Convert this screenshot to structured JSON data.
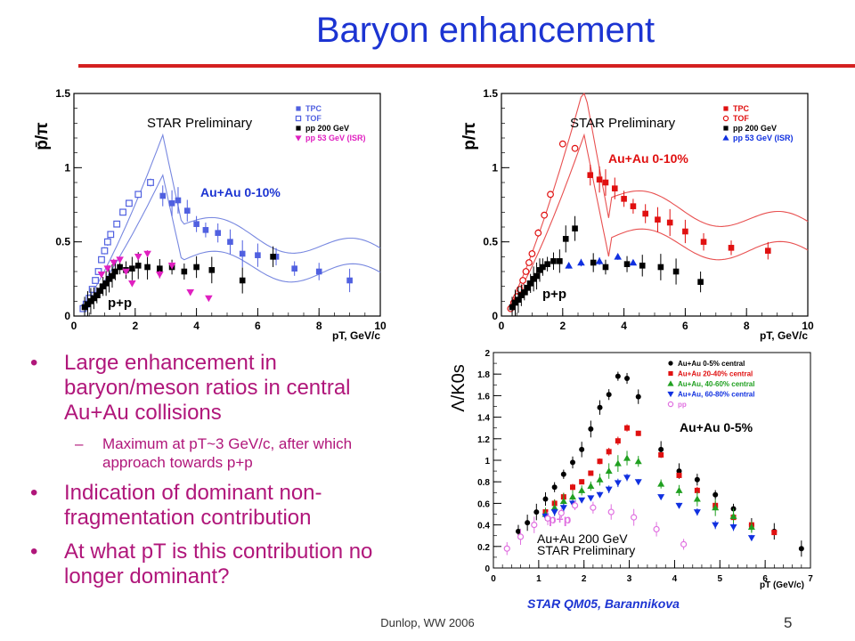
{
  "slide": {
    "title": "Baryon enhancement",
    "footer": "Dunlop, WW 2006",
    "page_number": "5",
    "credit": "STAR QM05, Barannikova",
    "colors": {
      "title": "#1c34d2",
      "rule": "#d42020",
      "text": "#b0167a"
    }
  },
  "bullets": [
    {
      "level": 1,
      "text": "Large enhancement in baryon/meson ratios in central Au+Au collisions"
    },
    {
      "level": 2,
      "text": "Maximum at pT~3 GeV/c, after which approach towards p+p"
    },
    {
      "level": 1,
      "text": "Indication of dominant non-fragmentation contribution"
    },
    {
      "level": 1,
      "text": "At what pT is this contribution no longer dominant?"
    }
  ],
  "chart_data": [
    {
      "type": "scatter",
      "ylabel": "p̄/π",
      "xlabel": "pT, GeV/c",
      "xlim": [
        0,
        10
      ],
      "ylim": [
        0,
        1.5
      ],
      "x_ticks": [
        "0",
        "2",
        "4",
        "6",
        "8",
        "10"
      ],
      "y_ticks": [
        "0",
        "0.5",
        "1",
        "1.5"
      ],
      "annotations": [
        "STAR Preliminary",
        "Au+Au 0-10%",
        "p+p"
      ],
      "legend": [
        "TPC",
        "TOF",
        "pp 200 GeV",
        "pp 53 GeV (ISR)"
      ],
      "series": [
        {
          "name": "TPC",
          "color": "#5060e0",
          "marker": "square",
          "x": [
            2.9,
            3.2,
            3.4,
            3.7,
            4.0,
            4.3,
            4.7,
            5.1,
            5.5,
            6.0,
            6.6,
            7.2,
            8.0,
            9.0
          ],
          "y": [
            0.81,
            0.76,
            0.78,
            0.71,
            0.62,
            0.58,
            0.56,
            0.5,
            0.42,
            0.41,
            0.4,
            0.32,
            0.3,
            0.24
          ]
        },
        {
          "name": "TOF",
          "color": "#5060e0",
          "marker": "open-square",
          "x": [
            0.3,
            0.4,
            0.5,
            0.6,
            0.7,
            0.8,
            0.9,
            1.0,
            1.1,
            1.2,
            1.4,
            1.6,
            1.8,
            2.1,
            2.5
          ],
          "y": [
            0.05,
            0.08,
            0.12,
            0.18,
            0.24,
            0.3,
            0.38,
            0.44,
            0.5,
            0.55,
            0.62,
            0.7,
            0.76,
            0.82,
            0.9
          ]
        },
        {
          "name": "pp 200 GeV",
          "color": "#000000",
          "marker": "square",
          "x": [
            0.35,
            0.45,
            0.55,
            0.65,
            0.75,
            0.85,
            0.95,
            1.05,
            1.15,
            1.25,
            1.35,
            1.5,
            1.7,
            1.9,
            2.1,
            2.4,
            2.8,
            3.2,
            3.6,
            4.0,
            4.5,
            5.5,
            6.5
          ],
          "y": [
            0.06,
            0.08,
            0.1,
            0.12,
            0.14,
            0.17,
            0.2,
            0.22,
            0.25,
            0.27,
            0.3,
            0.33,
            0.31,
            0.32,
            0.34,
            0.33,
            0.32,
            0.33,
            0.3,
            0.33,
            0.31,
            0.24,
            0.4
          ]
        },
        {
          "name": "pp 53 GeV (ISR)",
          "color": "#e020c0",
          "marker": "triangle-down",
          "x": [
            0.9,
            1.1,
            1.3,
            1.5,
            1.7,
            1.9,
            2.1,
            2.4,
            2.8,
            3.2,
            3.8,
            4.4
          ],
          "y": [
            0.28,
            0.32,
            0.36,
            0.38,
            0.3,
            0.22,
            0.4,
            0.42,
            0.28,
            0.34,
            0.16,
            0.12
          ]
        }
      ]
    },
    {
      "type": "scatter",
      "ylabel": "p/π",
      "xlabel": "pT, GeV/c",
      "xlim": [
        0,
        10
      ],
      "ylim": [
        0,
        1.5
      ],
      "x_ticks": [
        "0",
        "2",
        "4",
        "6",
        "8",
        "10"
      ],
      "y_ticks": [
        "0",
        "0.5",
        "1",
        "1.5"
      ],
      "annotations": [
        "STAR Preliminary",
        "Au+Au 0-10%",
        "p+p"
      ],
      "legend": [
        "TPC",
        "TOF",
        "pp 200 GeV",
        "pp 53 GeV (ISR)"
      ],
      "series": [
        {
          "name": "TPC",
          "color": "#e01010",
          "marker": "square",
          "x": [
            2.9,
            3.2,
            3.4,
            3.7,
            4.0,
            4.3,
            4.7,
            5.1,
            5.5,
            6.0,
            6.6,
            7.5,
            8.7
          ],
          "y": [
            0.95,
            0.92,
            0.9,
            0.86,
            0.79,
            0.74,
            0.69,
            0.65,
            0.63,
            0.57,
            0.5,
            0.46,
            0.44
          ]
        },
        {
          "name": "TOF",
          "color": "#e01010",
          "marker": "open-circle",
          "x": [
            0.3,
            0.4,
            0.5,
            0.6,
            0.7,
            0.8,
            0.9,
            1.0,
            1.2,
            1.4,
            1.6,
            2.0,
            2.4
          ],
          "y": [
            0.05,
            0.09,
            0.13,
            0.18,
            0.24,
            0.3,
            0.36,
            0.42,
            0.56,
            0.68,
            0.82,
            1.16,
            1.13
          ]
        },
        {
          "name": "pp 200 GeV",
          "color": "#000000",
          "marker": "square",
          "x": [
            0.35,
            0.45,
            0.55,
            0.65,
            0.75,
            0.85,
            0.95,
            1.05,
            1.15,
            1.25,
            1.35,
            1.5,
            1.7,
            1.9,
            2.1,
            2.4,
            3.0,
            3.4,
            4.1,
            4.6,
            5.2,
            5.7,
            6.5
          ],
          "y": [
            0.06,
            0.09,
            0.11,
            0.14,
            0.16,
            0.19,
            0.22,
            0.25,
            0.27,
            0.31,
            0.33,
            0.35,
            0.37,
            0.37,
            0.52,
            0.59,
            0.36,
            0.33,
            0.35,
            0.34,
            0.33,
            0.3,
            0.23
          ]
        },
        {
          "name": "pp 53 GeV (ISR)",
          "color": "#1030e0",
          "marker": "triangle",
          "x": [
            2.2,
            2.6,
            3.2,
            3.8,
            4.3
          ],
          "y": [
            0.34,
            0.36,
            0.37,
            0.4,
            0.36
          ]
        }
      ]
    },
    {
      "type": "scatter",
      "ylabel": "Λ/K0s",
      "xlabel": "pT (GeV/c)",
      "xlim": [
        0,
        7
      ],
      "ylim": [
        0,
        2
      ],
      "x_ticks": [
        "0",
        "1",
        "2",
        "3",
        "4",
        "5",
        "6",
        "7"
      ],
      "y_ticks": [
        "0",
        "0.2",
        "0.4",
        "0.6",
        "0.8",
        "1",
        "1.2",
        "1.4",
        "1.6",
        "1.8",
        "2"
      ],
      "annotations": [
        "Au+Au 200 GeV",
        "STAR Preliminary",
        "Au+Au 0-5%",
        "p+p"
      ],
      "legend": [
        "Au+Au 0-5% central",
        "Au+Au 20-40% central",
        "Au+Au, 40-60% central",
        "Au+Au, 60-80% central",
        "pp"
      ],
      "series": [
        {
          "name": "Au+Au 0-5% central",
          "color": "#000000",
          "marker": "circle",
          "x": [
            0.55,
            0.75,
            0.95,
            1.15,
            1.35,
            1.55,
            1.75,
            1.95,
            2.15,
            2.35,
            2.55,
            2.75,
            2.95,
            3.2,
            3.7,
            4.1,
            4.5,
            4.9,
            5.3,
            5.7,
            6.2,
            6.8
          ],
          "y": [
            0.34,
            0.42,
            0.52,
            0.64,
            0.75,
            0.87,
            0.98,
            1.1,
            1.29,
            1.49,
            1.61,
            1.78,
            1.76,
            1.59,
            1.1,
            0.9,
            0.82,
            0.68,
            0.55,
            0.4,
            0.34,
            0.18
          ]
        },
        {
          "name": "Au+Au 20-40% central",
          "color": "#e01010",
          "marker": "square",
          "x": [
            1.15,
            1.35,
            1.55,
            1.75,
            1.95,
            2.15,
            2.35,
            2.55,
            2.75,
            2.95,
            3.2,
            3.7,
            4.1,
            4.5,
            4.9,
            5.3,
            5.7,
            6.2
          ],
          "y": [
            0.52,
            0.6,
            0.66,
            0.75,
            0.8,
            0.88,
            0.99,
            1.08,
            1.18,
            1.3,
            1.25,
            1.05,
            0.86,
            0.72,
            0.58,
            0.47,
            0.4,
            0.33
          ]
        },
        {
          "name": "Au+Au, 40-60% central",
          "color": "#20a020",
          "marker": "triangle",
          "x": [
            1.15,
            1.35,
            1.55,
            1.75,
            1.95,
            2.15,
            2.35,
            2.55,
            2.75,
            2.95,
            3.2,
            3.7,
            4.1,
            4.5,
            4.9,
            5.3,
            5.7
          ],
          "y": [
            0.5,
            0.56,
            0.62,
            0.66,
            0.72,
            0.76,
            0.82,
            0.9,
            0.97,
            1.02,
            0.99,
            0.78,
            0.72,
            0.64,
            0.56,
            0.48,
            0.38
          ]
        },
        {
          "name": "Au+Au, 60-80% central",
          "color": "#1030e0",
          "marker": "triangle-down",
          "x": [
            1.15,
            1.35,
            1.55,
            1.75,
            1.95,
            2.15,
            2.35,
            2.55,
            2.75,
            2.95,
            3.2,
            3.7,
            4.1,
            4.5,
            4.9,
            5.3,
            5.7
          ],
          "y": [
            0.48,
            0.52,
            0.56,
            0.6,
            0.63,
            0.65,
            0.68,
            0.73,
            0.79,
            0.84,
            0.8,
            0.66,
            0.58,
            0.52,
            0.4,
            0.38,
            0.28
          ]
        },
        {
          "name": "pp",
          "color": "#e070e0",
          "marker": "open-circle",
          "x": [
            0.3,
            0.6,
            0.9,
            1.2,
            1.5,
            1.8,
            2.2,
            2.6,
            3.1,
            3.6,
            4.2
          ],
          "y": [
            0.18,
            0.29,
            0.4,
            0.46,
            0.51,
            0.58,
            0.56,
            0.52,
            0.47,
            0.36,
            0.22
          ]
        }
      ]
    }
  ]
}
